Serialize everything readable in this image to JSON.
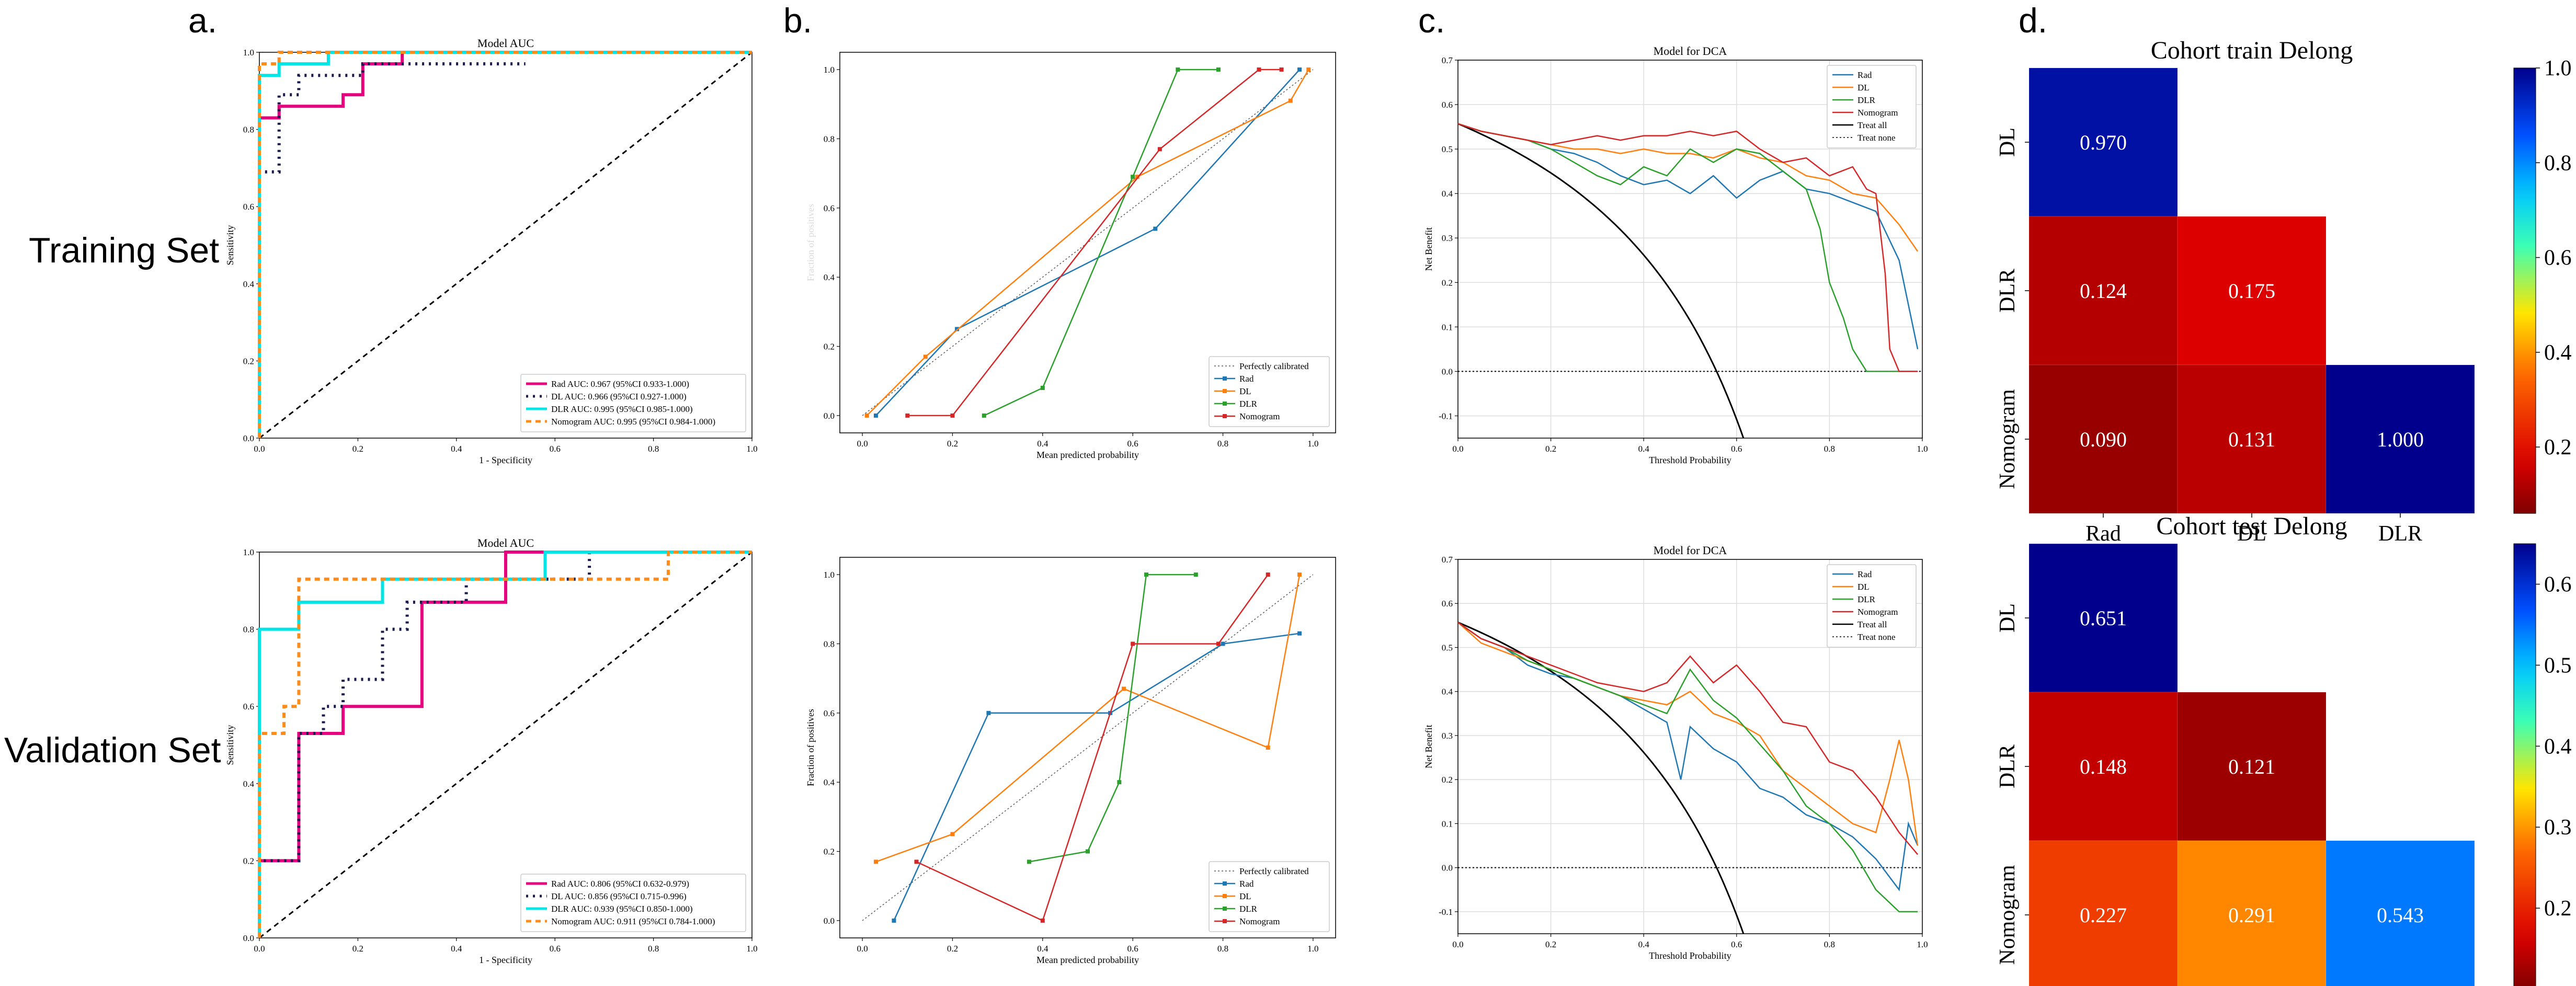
{
  "figure": {
    "panel_letters": [
      "a.",
      "b.",
      "c.",
      "d."
    ],
    "row_labels": [
      "Training Set",
      "Validation Set"
    ]
  },
  "colors": {
    "Rad_roc": "#e6007e",
    "DL_roc": "#1a1a4e",
    "DLR_roc": "#00e5e5",
    "Nomogram_roc": "#ff8c1a",
    "Rad": "#1f77b4",
    "DL": "#ff7f0e",
    "DLR": "#2ca02c",
    "Nomogram": "#d62728",
    "TreatAll": "#000000",
    "Ref": "#000000"
  },
  "chart_data": [
    {
      "id": "roc_train",
      "type": "line",
      "title": "Model AUC",
      "xlabel": "1 - Specificity",
      "ylabel": "Sensitivity",
      "xlim": [
        0,
        1
      ],
      "ylim": [
        0,
        1
      ],
      "xticks": [
        "0.0",
        "0.2",
        "0.4",
        "0.6",
        "0.8",
        "1.0"
      ],
      "yticks": [
        "0.0",
        "0.2",
        "0.4",
        "0.6",
        "0.8",
        "1.0"
      ],
      "legend_pos": "lower right",
      "series": [
        {
          "name": "Rad AUC: 0.967 (95%CI 0.933-1.000)",
          "key": "Rad_roc",
          "dash": "solid",
          "x": [
            0,
            0,
            0.04,
            0.04,
            0.17,
            0.17,
            0.21,
            0.21,
            0.29,
            0.29,
            1
          ],
          "y": [
            0,
            0.83,
            0.83,
            0.86,
            0.86,
            0.89,
            0.89,
            0.97,
            0.97,
            1,
            1
          ]
        },
        {
          "name": "DL AUC: 0.966 (95%CI 0.927-1.000)",
          "key": "DL_roc",
          "dash": "dot",
          "x": [
            0,
            0,
            0.04,
            0.04,
            0.08,
            0.08,
            0.21,
            0.21,
            0.54
          ],
          "y": [
            0,
            0.69,
            0.69,
            0.89,
            0.89,
            0.94,
            0.94,
            0.97,
            0.97
          ]
        },
        {
          "name": "DLR AUC: 0.995 (95%CI 0.985-1.000)",
          "key": "DLR_roc",
          "dash": "solid",
          "x": [
            0,
            0,
            0.04,
            0.04,
            0.14,
            0.14,
            1
          ],
          "y": [
            0,
            0.94,
            0.94,
            0.97,
            0.97,
            1,
            1
          ]
        },
        {
          "name": "Nomogram AUC: 0.995 (95%CI 0.984-1.000)",
          "key": "Nomogram_roc",
          "dash": "dash",
          "x": [
            0,
            0,
            0.04,
            0.04,
            1
          ],
          "y": [
            0,
            0.97,
            0.97,
            1,
            1
          ]
        }
      ]
    },
    {
      "id": "roc_test",
      "type": "line",
      "title": "Model AUC",
      "xlabel": "1 - Specificity",
      "ylabel": "Sensitivity",
      "xlim": [
        0,
        1
      ],
      "ylim": [
        0,
        1
      ],
      "xticks": [
        "0.0",
        "0.2",
        "0.4",
        "0.6",
        "0.8",
        "1.0"
      ],
      "yticks": [
        "0.0",
        "0.2",
        "0.4",
        "0.6",
        "0.8",
        "1.0"
      ],
      "legend_pos": "lower right",
      "series": [
        {
          "name": "Rad AUC: 0.806 (95%CI 0.632-0.979)",
          "key": "Rad_roc",
          "dash": "solid",
          "x": [
            0,
            0,
            0.08,
            0.08,
            0.17,
            0.17,
            0.25,
            0.25,
            0.33,
            0.33,
            0.5,
            0.5,
            1
          ],
          "y": [
            0,
            0.2,
            0.2,
            0.53,
            0.53,
            0.6,
            0.6,
            0.6,
            0.6,
            0.87,
            0.87,
            1,
            1
          ]
        },
        {
          "name": "DL AUC: 0.856 (95%CI 0.715-0.996)",
          "key": "DL_roc",
          "dash": "dot",
          "x": [
            0,
            0,
            0.08,
            0.08,
            0.13,
            0.13,
            0.17,
            0.17,
            0.25,
            0.25,
            0.3,
            0.3,
            0.42,
            0.42,
            0.67,
            0.67,
            1
          ],
          "y": [
            0,
            0.2,
            0.2,
            0.53,
            0.53,
            0.6,
            0.6,
            0.67,
            0.67,
            0.8,
            0.8,
            0.87,
            0.87,
            0.93,
            0.93,
            1,
            1
          ]
        },
        {
          "name": "DLR AUC: 0.939 (95%CI 0.850-1.000)",
          "key": "DLR_roc",
          "dash": "solid",
          "x": [
            0,
            0,
            0.08,
            0.08,
            0.25,
            0.25,
            0.58,
            0.58,
            1
          ],
          "y": [
            0,
            0.8,
            0.8,
            0.87,
            0.87,
            0.93,
            0.93,
            1,
            1
          ]
        },
        {
          "name": "Nomogram AUC: 0.911 (95%CI 0.784-1.000)",
          "key": "Nomogram_roc",
          "dash": "dash",
          "x": [
            0,
            0,
            0.05,
            0.05,
            0.08,
            0.08,
            0.83,
            0.83,
            1
          ],
          "y": [
            0,
            0.53,
            0.53,
            0.6,
            0.6,
            0.93,
            0.93,
            1,
            1
          ]
        }
      ]
    },
    {
      "id": "calib_train",
      "type": "line",
      "title": "",
      "xlabel": "Mean predicted probability",
      "ylabel": "Fraction of positives",
      "xlim": [
        -0.05,
        1.05
      ],
      "ylim": [
        -0.05,
        1.05
      ],
      "xticks": [
        "0.0",
        "0.2",
        "0.4",
        "0.6",
        "0.8",
        "1.0"
      ],
      "yticks": [
        "0.0",
        "0.2",
        "0.4",
        "0.6",
        "0.8",
        "1.0"
      ],
      "legend_pos": "lower right",
      "reference_label": "Perfectly calibrated",
      "series": [
        {
          "name": "Rad",
          "key": "Rad",
          "x": [
            0.03,
            0.21,
            0.65,
            0.97
          ],
          "y": [
            0,
            0.25,
            0.54,
            1
          ]
        },
        {
          "name": "DL",
          "key": "DL",
          "x": [
            0.01,
            0.14,
            0.61,
            0.95,
            0.99
          ],
          "y": [
            0,
            0.17,
            0.69,
            0.91,
            1
          ]
        },
        {
          "name": "DLR",
          "key": "DLR",
          "x": [
            0.27,
            0.4,
            0.6,
            0.7,
            0.79
          ],
          "y": [
            0,
            0.08,
            0.69,
            1,
            1
          ]
        },
        {
          "name": "Nomogram",
          "key": "Nomogram",
          "x": [
            0.1,
            0.2,
            0.66,
            0.88,
            0.93
          ],
          "y": [
            0,
            0,
            0.77,
            1,
            1
          ]
        }
      ]
    },
    {
      "id": "calib_test",
      "type": "line",
      "title": "",
      "xlabel": "Mean predicted probability",
      "ylabel": "Fraction of positives",
      "xlim": [
        -0.05,
        1.05
      ],
      "ylim": [
        -0.05,
        1.05
      ],
      "xticks": [
        "0.0",
        "0.2",
        "0.4",
        "0.6",
        "0.8",
        "1.0"
      ],
      "yticks": [
        "0.0",
        "0.2",
        "0.4",
        "0.6",
        "0.8",
        "1.0"
      ],
      "legend_pos": "lower right",
      "reference_label": "Perfectly calibrated",
      "series": [
        {
          "name": "Rad",
          "key": "Rad",
          "x": [
            0.07,
            0.28,
            0.55,
            0.8,
            0.97
          ],
          "y": [
            0,
            0.6,
            0.6,
            0.8,
            0.83
          ]
        },
        {
          "name": "DL",
          "key": "DL",
          "x": [
            0.03,
            0.2,
            0.58,
            0.9,
            0.97
          ],
          "y": [
            0.17,
            0.25,
            0.67,
            0.5,
            1
          ]
        },
        {
          "name": "DLR",
          "key": "DLR",
          "x": [
            0.37,
            0.5,
            0.57,
            0.63,
            0.74
          ],
          "y": [
            0.17,
            0.2,
            0.4,
            1,
            1
          ]
        },
        {
          "name": "Nomogram",
          "key": "Nomogram",
          "x": [
            0.12,
            0.4,
            0.6,
            0.79,
            0.9
          ],
          "y": [
            0.17,
            0,
            0.8,
            0.8,
            1
          ]
        }
      ]
    },
    {
      "id": "dca_train",
      "type": "line",
      "title": "Model for DCA",
      "xlabel": "Threshold Probability",
      "ylabel": "Net Benefit",
      "xlim": [
        0,
        1
      ],
      "ylim": [
        -0.15,
        0.7
      ],
      "xticks": [
        "0.0",
        "0.2",
        "0.4",
        "0.6",
        "0.8",
        "1.0"
      ],
      "yticks": [
        "-0.1",
        "0.0",
        "0.1",
        "0.2",
        "0.3",
        "0.4",
        "0.5",
        "0.6",
        "0.7"
      ],
      "legend_pos": "upper right",
      "prevalence": 0.557,
      "series": [
        {
          "name": "Rad",
          "key": "Rad",
          "x": [
            0,
            0.05,
            0.1,
            0.15,
            0.2,
            0.25,
            0.3,
            0.35,
            0.4,
            0.45,
            0.5,
            0.55,
            0.6,
            0.65,
            0.7,
            0.75,
            0.8,
            0.85,
            0.9,
            0.95,
            0.99
          ],
          "y": [
            0.557,
            0.54,
            0.53,
            0.52,
            0.5,
            0.49,
            0.47,
            0.44,
            0.42,
            0.43,
            0.4,
            0.44,
            0.39,
            0.43,
            0.45,
            0.41,
            0.4,
            0.38,
            0.36,
            0.25,
            0.05
          ]
        },
        {
          "name": "DL",
          "key": "DL",
          "x": [
            0,
            0.05,
            0.1,
            0.15,
            0.2,
            0.25,
            0.3,
            0.35,
            0.4,
            0.45,
            0.5,
            0.55,
            0.6,
            0.65,
            0.7,
            0.75,
            0.8,
            0.85,
            0.9,
            0.95,
            0.99
          ],
          "y": [
            0.557,
            0.54,
            0.53,
            0.52,
            0.51,
            0.5,
            0.5,
            0.49,
            0.5,
            0.49,
            0.49,
            0.48,
            0.5,
            0.48,
            0.47,
            0.44,
            0.43,
            0.4,
            0.39,
            0.33,
            0.27
          ]
        },
        {
          "name": "DLR",
          "key": "DLR",
          "x": [
            0,
            0.05,
            0.1,
            0.15,
            0.2,
            0.25,
            0.3,
            0.35,
            0.4,
            0.45,
            0.5,
            0.55,
            0.6,
            0.65,
            0.7,
            0.75,
            0.78,
            0.8,
            0.83,
            0.85,
            0.88,
            0.9,
            0.95,
            0.99
          ],
          "y": [
            0.557,
            0.54,
            0.53,
            0.52,
            0.5,
            0.47,
            0.44,
            0.42,
            0.46,
            0.44,
            0.5,
            0.47,
            0.5,
            0.49,
            0.45,
            0.41,
            0.32,
            0.2,
            0.12,
            0.05,
            0,
            0,
            0,
            0
          ]
        },
        {
          "name": "Nomogram",
          "key": "Nomogram",
          "x": [
            0,
            0.05,
            0.1,
            0.15,
            0.2,
            0.25,
            0.3,
            0.35,
            0.4,
            0.45,
            0.5,
            0.55,
            0.6,
            0.65,
            0.7,
            0.75,
            0.8,
            0.85,
            0.88,
            0.9,
            0.92,
            0.93,
            0.95,
            0.99
          ],
          "y": [
            0.557,
            0.54,
            0.53,
            0.52,
            0.51,
            0.52,
            0.53,
            0.52,
            0.53,
            0.53,
            0.54,
            0.53,
            0.54,
            0.5,
            0.47,
            0.48,
            0.44,
            0.46,
            0.41,
            0.4,
            0.22,
            0.05,
            0,
            0
          ]
        }
      ],
      "treat_all_label": "Treat all",
      "treat_none_label": "Treat none"
    },
    {
      "id": "dca_test",
      "type": "line",
      "title": "Model for DCA",
      "xlabel": "Threshold Probability",
      "ylabel": "Net Benefit",
      "xlim": [
        0,
        1
      ],
      "ylim": [
        -0.15,
        0.7
      ],
      "xticks": [
        "0.0",
        "0.2",
        "0.4",
        "0.6",
        "0.8",
        "1.0"
      ],
      "yticks": [
        "-0.1",
        "0.0",
        "0.1",
        "0.2",
        "0.3",
        "0.4",
        "0.5",
        "0.6",
        "0.7"
      ],
      "legend_pos": "upper right",
      "prevalence": 0.557,
      "series": [
        {
          "name": "Rad",
          "key": "Rad",
          "x": [
            0,
            0.05,
            0.1,
            0.15,
            0.2,
            0.25,
            0.3,
            0.35,
            0.4,
            0.45,
            0.48,
            0.5,
            0.55,
            0.6,
            0.65,
            0.7,
            0.75,
            0.8,
            0.85,
            0.9,
            0.95,
            0.97,
            0.99
          ],
          "y": [
            0.557,
            0.52,
            0.5,
            0.46,
            0.44,
            0.43,
            0.41,
            0.39,
            0.36,
            0.33,
            0.2,
            0.32,
            0.27,
            0.24,
            0.18,
            0.16,
            0.12,
            0.1,
            0.07,
            0.02,
            -0.05,
            0.1,
            0.05
          ]
        },
        {
          "name": "DL",
          "key": "DL",
          "x": [
            0,
            0.05,
            0.1,
            0.15,
            0.2,
            0.25,
            0.3,
            0.35,
            0.4,
            0.45,
            0.5,
            0.55,
            0.6,
            0.65,
            0.7,
            0.75,
            0.8,
            0.85,
            0.9,
            0.93,
            0.95,
            0.97,
            0.99
          ],
          "y": [
            0.557,
            0.51,
            0.49,
            0.47,
            0.45,
            0.43,
            0.41,
            0.39,
            0.38,
            0.37,
            0.4,
            0.35,
            0.33,
            0.3,
            0.22,
            0.18,
            0.14,
            0.1,
            0.08,
            0.2,
            0.29,
            0.2,
            0.05
          ]
        },
        {
          "name": "DLR",
          "key": "DLR",
          "x": [
            0,
            0.05,
            0.1,
            0.15,
            0.2,
            0.25,
            0.3,
            0.35,
            0.4,
            0.45,
            0.5,
            0.55,
            0.6,
            0.65,
            0.7,
            0.75,
            0.8,
            0.85,
            0.9,
            0.95,
            0.99
          ],
          "y": [
            0.557,
            0.52,
            0.5,
            0.47,
            0.45,
            0.43,
            0.41,
            0.39,
            0.37,
            0.35,
            0.45,
            0.38,
            0.34,
            0.28,
            0.22,
            0.14,
            0.1,
            0.04,
            -0.05,
            -0.1,
            -0.1
          ]
        },
        {
          "name": "Nomogram",
          "key": "Nomogram",
          "x": [
            0,
            0.05,
            0.1,
            0.15,
            0.2,
            0.25,
            0.3,
            0.35,
            0.4,
            0.45,
            0.5,
            0.55,
            0.6,
            0.65,
            0.7,
            0.75,
            0.8,
            0.85,
            0.9,
            0.95,
            0.99
          ],
          "y": [
            0.557,
            0.52,
            0.5,
            0.48,
            0.46,
            0.44,
            0.42,
            0.41,
            0.4,
            0.42,
            0.48,
            0.42,
            0.46,
            0.4,
            0.33,
            0.32,
            0.24,
            0.22,
            0.16,
            0.08,
            0.03
          ]
        }
      ],
      "treat_all_label": "Treat all",
      "treat_none_label": "Treat none"
    },
    {
      "id": "delong_train",
      "type": "heatmap",
      "title": "Cohort train Delong",
      "rows": [
        "DL",
        "DLR",
        "Nomogram"
      ],
      "cols": [
        "Rad",
        "DL",
        "DLR"
      ],
      "values": [
        [
          0.97,
          null,
          null
        ],
        [
          0.124,
          0.175,
          null
        ],
        [
          0.09,
          0.131,
          1.0
        ]
      ],
      "vmin": 0.06,
      "vmax": 1.0,
      "colorbar_ticks": [
        "0.2",
        "0.4",
        "0.6",
        "0.8",
        "1.0"
      ]
    },
    {
      "id": "delong_test",
      "type": "heatmap",
      "title": "Cohort test Delong",
      "rows": [
        "DL",
        "DLR",
        "Nomogram"
      ],
      "cols": [
        "Rad",
        "DL",
        "DLR"
      ],
      "values": [
        [
          0.651,
          null,
          null
        ],
        [
          0.148,
          0.121,
          null
        ],
        [
          0.227,
          0.291,
          0.543
        ]
      ],
      "vmin": 0.1,
      "vmax": 0.65,
      "colorbar_ticks": [
        "0.2",
        "0.3",
        "0.4",
        "0.5",
        "0.6"
      ]
    }
  ]
}
